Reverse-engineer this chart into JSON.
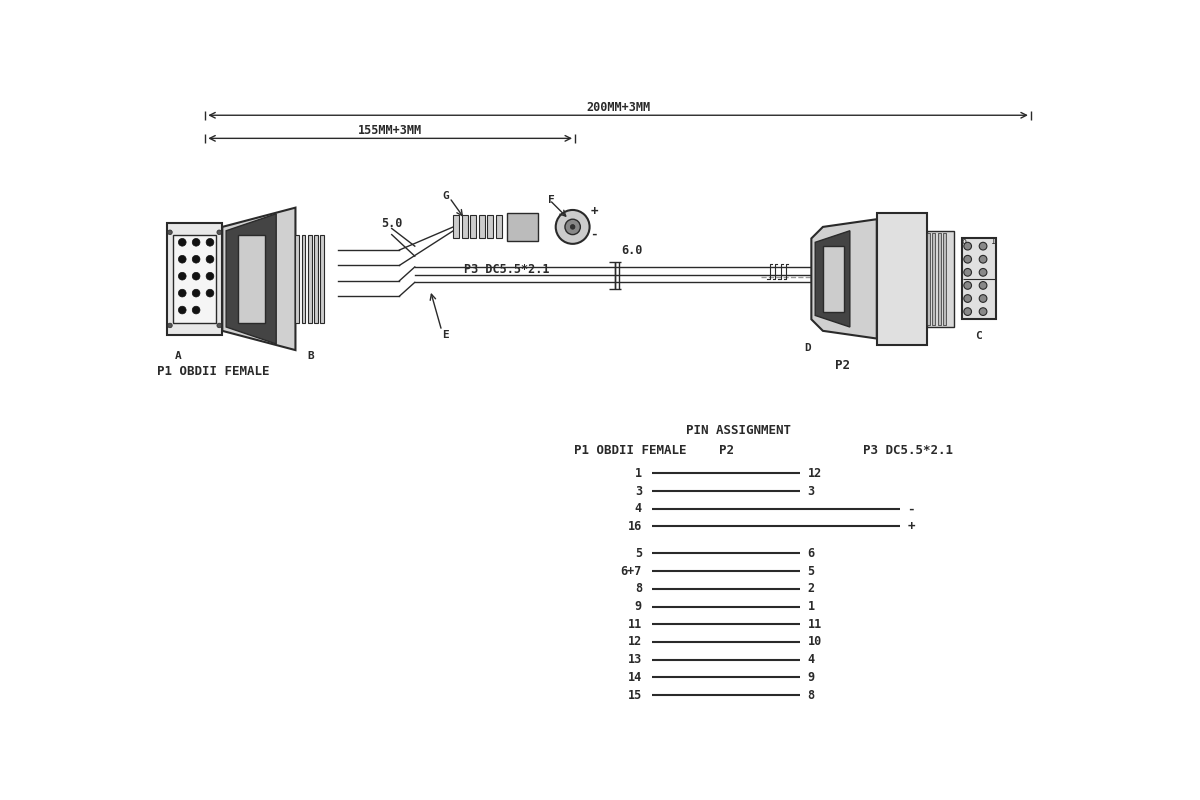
{
  "bg_color": "#ffffff",
  "line_color": "#2a2a2a",
  "dim_top": "200MM+3MM",
  "dim_mid": "155MM+3MM",
  "label_A": "A",
  "label_B": "B",
  "label_E": "E",
  "label_G": "G",
  "label_F": "F",
  "label_D": "D",
  "label_C": "C",
  "label_50": "5.0",
  "label_60": "6.0",
  "label_P1": "P1 OBDII FEMALE",
  "label_P2": "P2",
  "label_P3": "P3 DC5.5*2.1",
  "title_pin": "PIN ASSIGNMENT",
  "col1_label": "P1 OBDII FEMALE",
  "col2_label": "P2",
  "col3_label": "P3 DC5.5*2.1",
  "pin_connections": [
    {
      "p1": "1",
      "p2": "12",
      "p3": null,
      "long": false
    },
    {
      "p1": "3",
      "p2": "3",
      "p3": null,
      "long": false
    },
    {
      "p1": "4",
      "p2": null,
      "p3": "-",
      "long": true
    },
    {
      "p1": "16",
      "p2": null,
      "p3": "+",
      "long": true
    },
    {
      "p1": "5",
      "p2": "6",
      "p3": null,
      "long": false
    },
    {
      "p1": "6+7",
      "p2": "5",
      "p3": null,
      "long": false
    },
    {
      "p1": "8",
      "p2": "2",
      "p3": null,
      "long": false
    },
    {
      "p1": "9",
      "p2": "1",
      "p3": null,
      "long": false
    },
    {
      "p1": "11",
      "p2": "11",
      "p3": null,
      "long": false
    },
    {
      "p1": "12",
      "p2": "10",
      "p3": null,
      "long": false
    },
    {
      "p1": "13",
      "p2": "4",
      "p3": null,
      "long": false
    },
    {
      "p1": "14",
      "p2": "9",
      "p3": null,
      "long": false
    },
    {
      "p1": "15",
      "p2": "8",
      "p3": null,
      "long": false
    }
  ]
}
